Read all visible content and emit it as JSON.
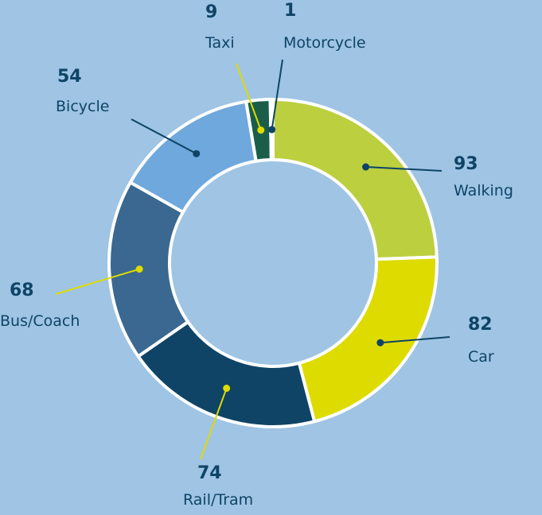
{
  "chart_data": {
    "type": "donut",
    "categories": [
      "Walking",
      "Car",
      "Rail/Tram",
      "Bus/Coach",
      "Bicycle",
      "Taxi",
      "Motorcycle"
    ],
    "values": [
      93,
      82,
      74,
      68,
      54,
      9,
      1
    ],
    "colors": [
      "#bccf3f",
      "#dedb00",
      "#0f4466",
      "#3a6890",
      "#6fa8dc",
      "#1a5e4a",
      "#86a82e"
    ]
  }
}
